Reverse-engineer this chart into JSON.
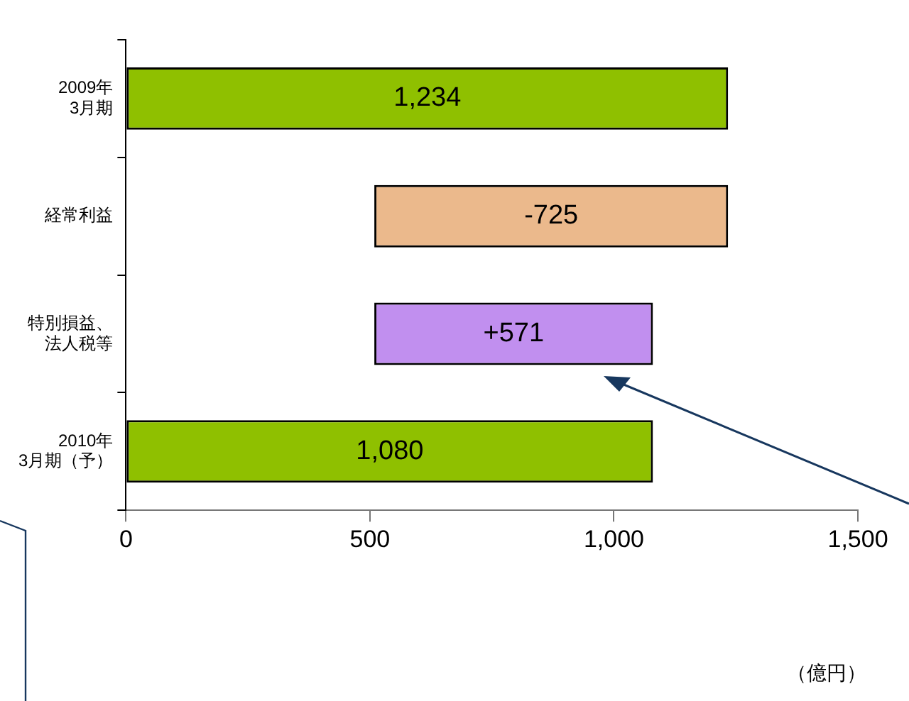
{
  "chart_data": {
    "type": "bar",
    "orientation": "horizontal",
    "categories": [
      "2009年3月期",
      "経常利益",
      "特別損益、法人税等",
      "2010年3月期（予）"
    ],
    "values": [
      1234,
      -725,
      571,
      1080
    ],
    "base": [
      0,
      1234,
      509,
      0
    ],
    "colors": [
      "#8fc000",
      "#ebb98c",
      "#c18fef",
      "#8fc000"
    ],
    "value_labels": [
      "1,234",
      "-725",
      "+571",
      "1,080"
    ],
    "xlim": [
      0,
      1500
    ],
    "xticks": [
      0,
      500,
      {
        "value": 1000,
        "label": "1,000"
      },
      {
        "value": 1500,
        "label": "1,500"
      }
    ],
    "annotations": [
      "（億円）"
    ],
    "grid": false,
    "legend": false
  }
}
